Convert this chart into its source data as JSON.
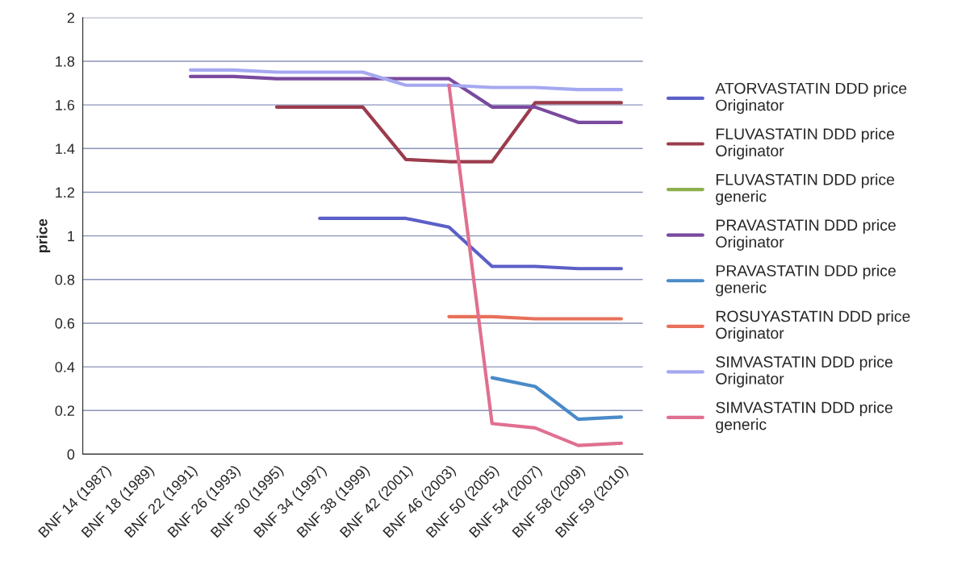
{
  "chart_data": {
    "type": "line",
    "ylabel": "price",
    "categories": [
      "BNF 14 (1987)",
      "BNF 18 (1989)",
      "BNF 22 (1991)",
      "BNF 26 (1993)",
      "BNF 30 (1995)",
      "BNF 34 (1997)",
      "BNF 38 (1999)",
      "BNF 42 (2001)",
      "BNF 46 (2003)",
      "BNF 50 (2005)",
      "BNF 54 (2007)",
      "BNF 58 (2009)",
      "BNF 59 (2010)"
    ],
    "series": [
      {
        "name": "ATORVASTATIN DDD price\nOriginator",
        "color": "#5b5fc7",
        "values": [
          null,
          null,
          null,
          null,
          null,
          1.08,
          1.08,
          1.08,
          1.04,
          0.86,
          0.86,
          0.85,
          0.85
        ]
      },
      {
        "name": "FLUVASTATIN DDD price\nOriginator",
        "color": "#9b3c4c",
        "values": [
          null,
          null,
          null,
          null,
          1.59,
          1.59,
          1.59,
          1.35,
          1.34,
          1.34,
          1.61,
          1.61,
          1.61
        ]
      },
      {
        "name": "FLUVASTATIN DDD price\ngeneric",
        "color": "#8db04c",
        "values": [
          null,
          null,
          null,
          null,
          null,
          null,
          null,
          null,
          null,
          null,
          null,
          null,
          null
        ]
      },
      {
        "name": "PRAVASTATIN DDD price\nOriginator",
        "color": "#7a4a9e",
        "values": [
          null,
          null,
          1.73,
          1.73,
          1.72,
          1.72,
          1.72,
          1.72,
          1.72,
          1.59,
          1.59,
          1.52,
          1.52
        ]
      },
      {
        "name": "PRAVASTATIN DDD price\ngeneric",
        "color": "#4a8ac8",
        "values": [
          null,
          null,
          null,
          null,
          null,
          null,
          null,
          null,
          null,
          0.35,
          0.31,
          0.16,
          0.17
        ]
      },
      {
        "name": "ROSUYASTATIN DDD price\nOriginator",
        "color": "#e8705a",
        "values": [
          null,
          null,
          null,
          null,
          null,
          null,
          null,
          null,
          0.63,
          0.63,
          0.62,
          0.62,
          0.62
        ]
      },
      {
        "name": "SIMVASTATIN DDD price\nOriginator",
        "color": "#a5a8f0",
        "values": [
          null,
          null,
          1.76,
          1.76,
          1.75,
          1.75,
          1.75,
          1.69,
          1.69,
          1.68,
          1.68,
          1.67,
          1.67
        ]
      },
      {
        "name": "SIMVASTATIN DDD price\ngeneric",
        "color": "#e07090",
        "values": [
          null,
          null,
          null,
          null,
          null,
          null,
          null,
          null,
          1.69,
          0.14,
          0.12,
          0.04,
          0.05
        ]
      }
    ],
    "ylim": [
      0,
      2
    ],
    "yticks": [
      0,
      0.2,
      0.4,
      0.6,
      0.8,
      1,
      1.2,
      1.4,
      1.6,
      1.8,
      2
    ],
    "grid": "y",
    "legend": "right",
    "line_style": "solid",
    "marker": "none"
  }
}
